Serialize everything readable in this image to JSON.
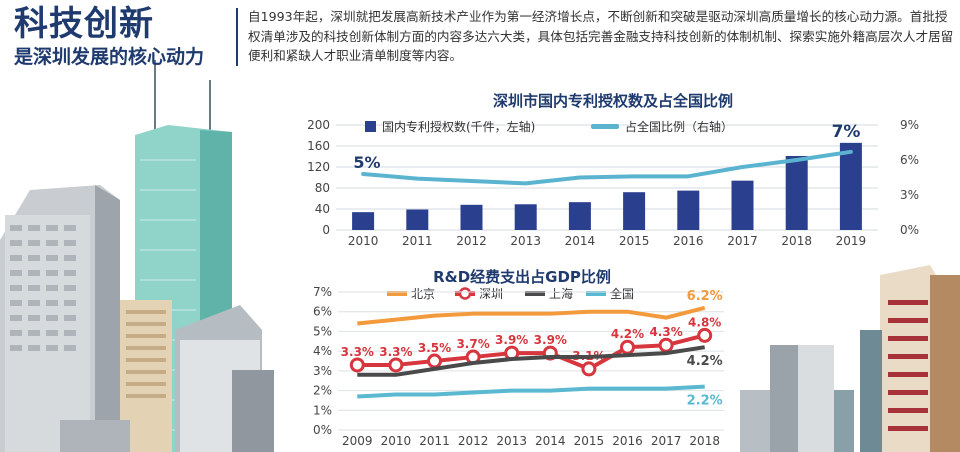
{
  "header": {
    "title": "科技创新",
    "subtitle": "是深圳发展的核心动力",
    "intro": "自1993年起，深圳就把发展高新技术产业作为第一经济增长点，不断创新和突破是驱动深圳高质量增长的核心动力源。首批授权清单涉及的科技创新体制方面的内容多达六大类，具体包括完善金融支持科技创新的体制机制、探索实施外籍高层次人才居留便利和紧缺人才职业清单制度等内容。"
  },
  "colors": {
    "title_blue": "#1f3a6e",
    "bar_blue": "#2b3f8f",
    "line_cyan": "#5ab4cf",
    "beijing_orange": "#f29a3c",
    "shenzhen_red": "#d8363e",
    "shanghai_gray": "#4a4a4a",
    "national_cyan": "#5ab8d0"
  },
  "chart_data": [
    {
      "type": "bar",
      "title": "深圳市国内专利授权数及占全国比例",
      "categories": [
        "2010",
        "2011",
        "2012",
        "2013",
        "2014",
        "2015",
        "2016",
        "2017",
        "2018",
        "2019"
      ],
      "series": [
        {
          "name": "国内专利授权数(千件，左轴)",
          "type": "bar",
          "axis": "left",
          "values": [
            34,
            39,
            48,
            49,
            53,
            72,
            75,
            94,
            141,
            166
          ]
        },
        {
          "name": "占全国比例（右轴）",
          "type": "line",
          "axis": "right",
          "values": [
            4.8,
            4.4,
            4.2,
            4.0,
            4.5,
            4.6,
            4.6,
            5.4,
            6.0,
            6.7
          ]
        }
      ],
      "left_ticks": [
        "200",
        "160",
        "120",
        "80",
        "40",
        "0"
      ],
      "right_ticks": [
        "9%",
        "6%",
        "3%",
        "0%"
      ],
      "ylim_left": [
        0,
        200
      ],
      "ylim_right": [
        0,
        9
      ],
      "annotations": [
        "5%",
        "7%"
      ]
    },
    {
      "type": "line",
      "title": "R&D经费支出占GDP比例",
      "categories": [
        "2009",
        "2010",
        "2011",
        "2012",
        "2013",
        "2014",
        "2015",
        "2016",
        "2017",
        "2018"
      ],
      "series": [
        {
          "name": "北京",
          "values": [
            5.4,
            5.6,
            5.8,
            5.9,
            5.9,
            5.9,
            6.0,
            6.0,
            5.7,
            6.2
          ]
        },
        {
          "name": "深圳",
          "values": [
            3.3,
            3.3,
            3.5,
            3.7,
            3.9,
            3.9,
            3.1,
            4.2,
            4.3,
            4.8
          ],
          "labels": [
            "3.3%",
            "3.3%",
            "3.5%",
            "3.7%",
            "3.9%",
            "3.9%",
            "3.1%",
            "4.2%",
            "4.3%",
            "4.8%"
          ]
        },
        {
          "name": "上海",
          "values": [
            2.8,
            2.8,
            3.1,
            3.4,
            3.6,
            3.7,
            3.7,
            3.8,
            3.9,
            4.2
          ]
        },
        {
          "name": "全国",
          "values": [
            1.7,
            1.8,
            1.8,
            1.9,
            2.0,
            2.0,
            2.1,
            2.1,
            2.1,
            2.2
          ]
        }
      ],
      "y_ticks": [
        "7%",
        "6%",
        "5%",
        "4%",
        "3%",
        "2%",
        "1%",
        "0%"
      ],
      "ylim": [
        0,
        7
      ],
      "end_labels": {
        "北京": "6.2%",
        "上海": "4.2%",
        "全国": "2.2%"
      }
    }
  ]
}
